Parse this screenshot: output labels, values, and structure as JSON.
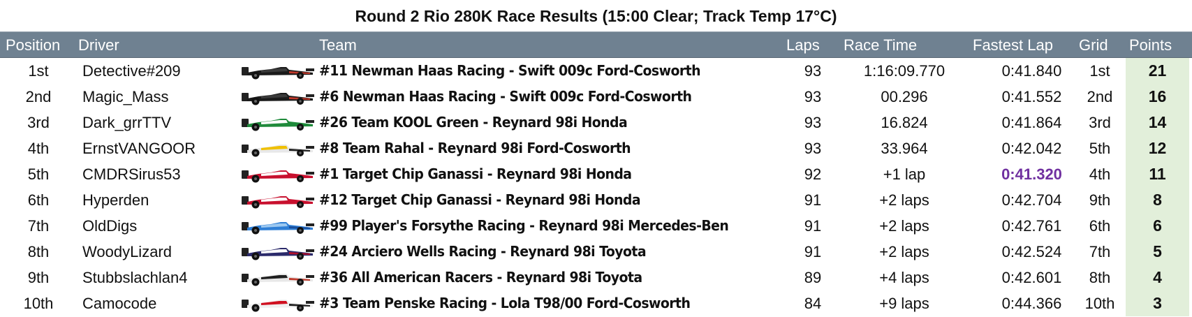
{
  "title": "Round 2 Rio 280K Race Results (15:00 Clear; Track Temp 17°C)",
  "headers": {
    "position": "Position",
    "driver": "Driver",
    "team": "Team",
    "laps": "Laps",
    "race_time": "Race Time",
    "fastest_lap": "Fastest Lap",
    "grid": "Grid",
    "points": "Points"
  },
  "colors": {
    "header_bg": "#6f8191",
    "points_bg": "#e2efda",
    "fastest_lap_highlight": "#7030a0"
  },
  "rows": [
    {
      "position": "1st",
      "driver": "Detective#209",
      "car_icon": "car-icon",
      "car_colors": [
        "#1a1a1a",
        "#3a3a3a",
        "#c0392b"
      ],
      "team": "#11 Newman Haas Racing - Swift 009c Ford-Cosworth",
      "laps": "93",
      "race_time": "1:16:09.770",
      "fastest_lap": "0:41.840",
      "grid": "1st",
      "points": "21"
    },
    {
      "position": "2nd",
      "driver": "Magic_Mass",
      "car_icon": "car-icon",
      "car_colors": [
        "#1a1a1a",
        "#3a3a3a",
        "#c0392b"
      ],
      "team": "#6 Newman Haas Racing - Swift 009c Ford-Cosworth",
      "laps": "93",
      "race_time": "00.296",
      "fastest_lap": "0:41.552",
      "grid": "2nd",
      "points": "16"
    },
    {
      "position": "3rd",
      "driver": "Dark_grrTTV",
      "car_icon": "car-icon",
      "car_colors": [
        "#1e8a3a",
        "#ffffff",
        "#1e8a3a"
      ],
      "team": "#26 Team KOOL Green - Reynard 98i Honda",
      "laps": "93",
      "race_time": "16.824",
      "fastest_lap": "0:41.864",
      "grid": "3rd",
      "points": "14"
    },
    {
      "position": "4th",
      "driver": "ErnstVANGOOR",
      "car_icon": "car-icon",
      "car_colors": [
        "#e8e8e8",
        "#f0c000",
        "#202020"
      ],
      "team": "#8 Team Rahal - Reynard 98i Ford-Cosworth",
      "laps": "93",
      "race_time": "33.964",
      "fastest_lap": "0:42.042",
      "grid": "5th",
      "points": "12"
    },
    {
      "position": "5th",
      "driver": "CMDRSirus53",
      "car_icon": "car-icon",
      "car_colors": [
        "#c8102e",
        "#ffffff",
        "#c8102e"
      ],
      "team": "#1 Target Chip Ganassi - Reynard 98i Honda",
      "laps": "92",
      "race_time": "+1 lap",
      "fastest_lap": "0:41.320",
      "fastest_best": true,
      "grid": "4th",
      "points": "11"
    },
    {
      "position": "6th",
      "driver": "Hyperden",
      "car_icon": "car-icon",
      "car_colors": [
        "#c8102e",
        "#ffffff",
        "#c8102e"
      ],
      "team": "#12 Target Chip Ganassi - Reynard 98i Honda",
      "laps": "91",
      "race_time": "+2 laps",
      "fastest_lap": "0:42.704",
      "grid": "9th",
      "points": "8"
    },
    {
      "position": "7th",
      "driver": "OldDigs",
      "car_icon": "car-icon",
      "car_colors": [
        "#2f7fd6",
        "#9cc8f0",
        "#1b4f9c"
      ],
      "team": "#99 Player's Forsythe Racing - Reynard 98i Mercedes-Ben",
      "laps": "91",
      "race_time": "+2 laps",
      "fastest_lap": "0:42.761",
      "grid": "6th",
      "points": "6"
    },
    {
      "position": "8th",
      "driver": "WoodyLizard",
      "car_icon": "car-icon",
      "car_colors": [
        "#2b2a6b",
        "#ffffff",
        "#b0102a"
      ],
      "team": "#24 Arciero Wells Racing - Reynard 98i Toyota",
      "laps": "91",
      "race_time": "+2 laps",
      "fastest_lap": "0:42.524",
      "grid": "7th",
      "points": "5"
    },
    {
      "position": "9th",
      "driver": "Stubbslachlan4",
      "car_icon": "car-icon",
      "car_colors": [
        "#e8e8e8",
        "#202020",
        "#c0392b"
      ],
      "team": "#36 All American Racers - Reynard 98i Toyota",
      "laps": "89",
      "race_time": "+4 laps",
      "fastest_lap": "0:42.601",
      "grid": "8th",
      "points": "4"
    },
    {
      "position": "10th",
      "driver": "Camocode",
      "car_icon": "car-icon",
      "car_colors": [
        "#f0f0f0",
        "#d01020",
        "#202020"
      ],
      "team": "#3 Team Penske Racing - Lola T98/00 Ford-Cosworth",
      "laps": "84",
      "race_time": "+9 laps",
      "fastest_lap": "0:44.366",
      "grid": "10th",
      "points": "3"
    }
  ]
}
